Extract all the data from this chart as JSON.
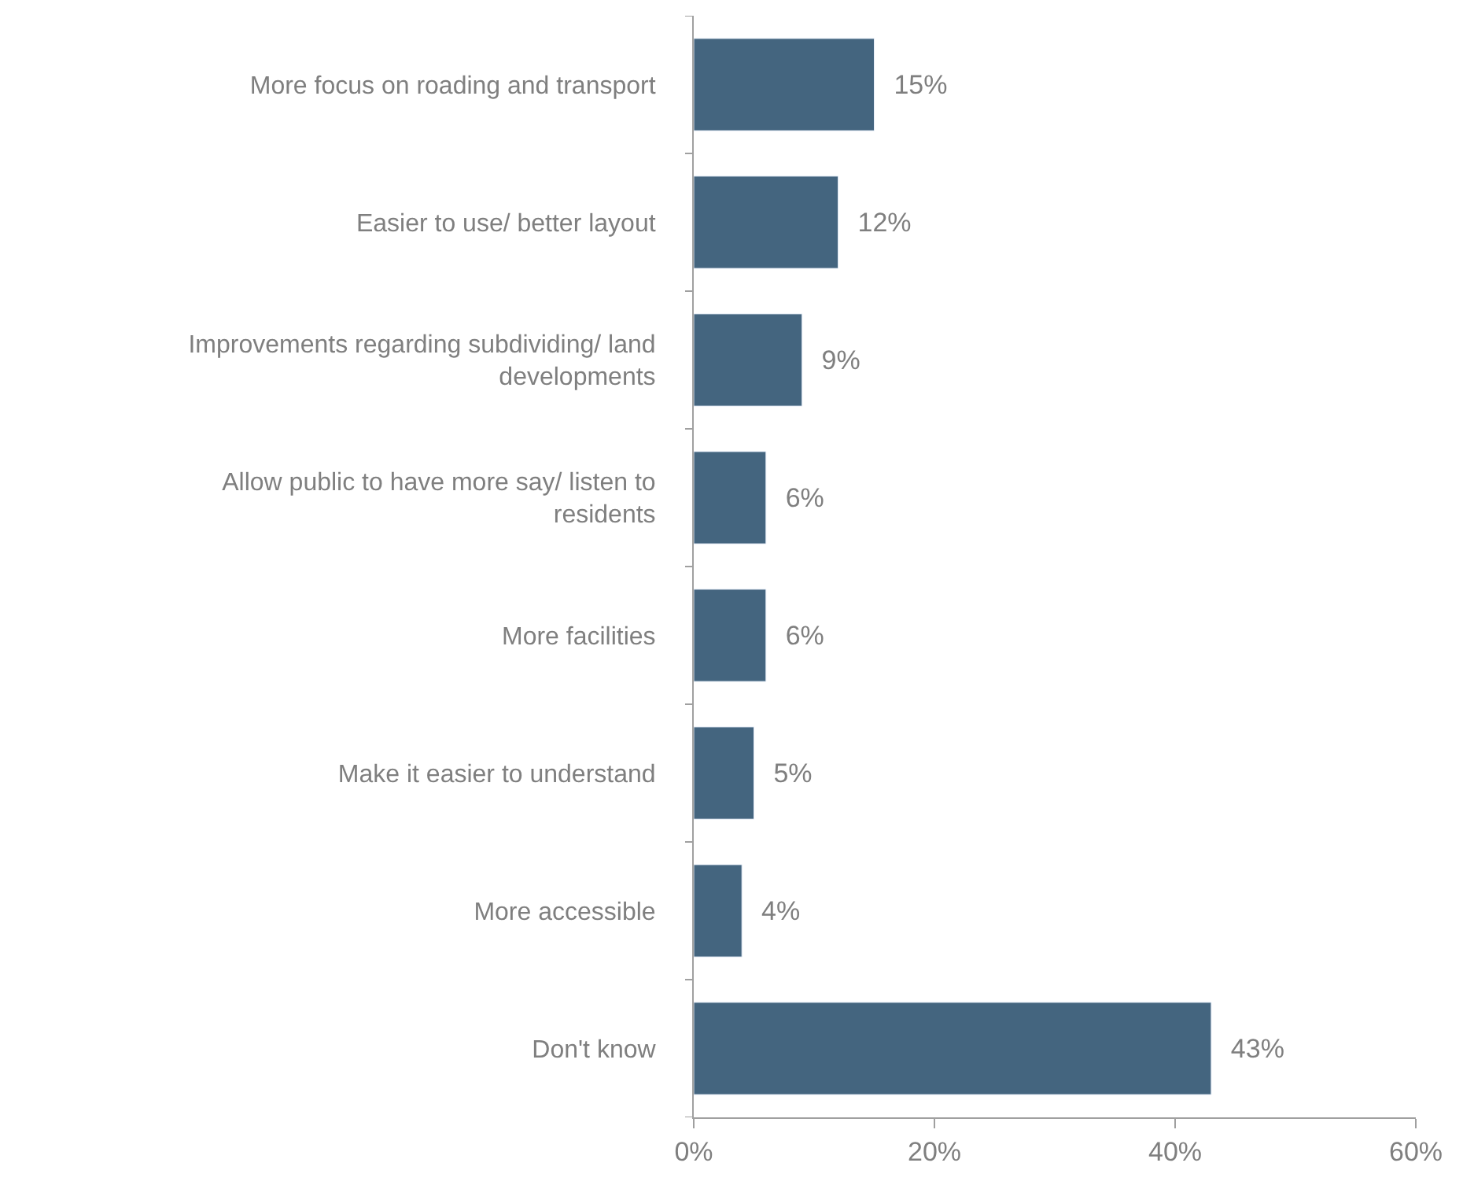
{
  "chart_data": {
    "type": "bar",
    "orientation": "horizontal",
    "categories": [
      "More focus on roading and transport",
      "Easier to use/ better layout",
      "Improvements regarding subdividing/ land developments",
      "Allow public to have more say/ listen to residents",
      "More facilities",
      "Make it easier to understand",
      "More accessible",
      "Don't know"
    ],
    "values": [
      15,
      12,
      9,
      6,
      6,
      5,
      4,
      43
    ],
    "value_labels": [
      "15%",
      "12%",
      "9%",
      "6%",
      "6%",
      "5%",
      "4%",
      "43%"
    ],
    "color": "#44657f",
    "xlim": [
      0,
      60
    ],
    "xticks": [
      {
        "value": 0,
        "label": "0%"
      },
      {
        "value": 20,
        "label": "20%"
      },
      {
        "value": 40,
        "label": "40%"
      },
      {
        "value": 60,
        "label": "60%"
      }
    ],
    "legend": false
  }
}
